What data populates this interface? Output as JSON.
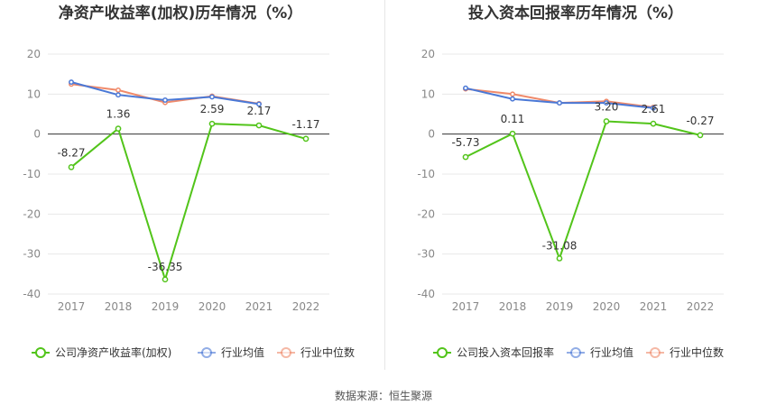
{
  "source": "数据来源：恒生聚源",
  "colors": {
    "company": "#52c41a",
    "avg": "#4a78d6",
    "median": "#f08a6a",
    "grid": "#e8e8e8",
    "zero": "#333333"
  },
  "chart_data": [
    {
      "type": "line",
      "title": "净资产收益率(加权)历年情况（%）",
      "categories": [
        "2017",
        "2018",
        "2019",
        "2020",
        "2021",
        "2022"
      ],
      "ylim": [
        -40,
        20
      ],
      "yticks": [
        20,
        10,
        0,
        -10,
        -20,
        -30,
        -40
      ],
      "grid": true,
      "legend_position": "bottom",
      "series": [
        {
          "name": "公司净资产收益率(加权)",
          "key": "company",
          "values": [
            -8.27,
            1.36,
            -36.35,
            2.59,
            2.17,
            -1.17
          ],
          "labels": [
            "-8.27",
            "1.36",
            "-36.35",
            "2.59",
            "2.17",
            "-1.17"
          ]
        },
        {
          "name": "行业均值",
          "key": "avg",
          "values": [
            13.0,
            9.8,
            8.5,
            9.3,
            7.5,
            null
          ]
        },
        {
          "name": "行业中位数",
          "key": "median",
          "values": [
            12.5,
            11.0,
            7.9,
            9.5,
            7.6,
            null
          ]
        }
      ]
    },
    {
      "type": "line",
      "title": "投入资本回报率历年情况（%）",
      "categories": [
        "2017",
        "2018",
        "2019",
        "2020",
        "2021",
        "2022"
      ],
      "ylim": [
        -40,
        20
      ],
      "yticks": [
        20,
        10,
        0,
        -10,
        -20,
        -30,
        -40
      ],
      "grid": true,
      "legend_position": "bottom",
      "series": [
        {
          "name": "公司投入资本回报率",
          "key": "company",
          "values": [
            -5.73,
            0.11,
            -31.08,
            3.2,
            2.61,
            -0.27
          ],
          "labels": [
            "-5.73",
            "0.11",
            "-31.08",
            "3.20",
            "2.61",
            "-0.27"
          ]
        },
        {
          "name": "行业均值",
          "key": "avg",
          "values": [
            11.5,
            8.8,
            7.8,
            7.8,
            6.5,
            null
          ]
        },
        {
          "name": "行业中位数",
          "key": "median",
          "values": [
            11.3,
            10.0,
            7.8,
            8.2,
            6.7,
            null
          ]
        }
      ]
    }
  ]
}
